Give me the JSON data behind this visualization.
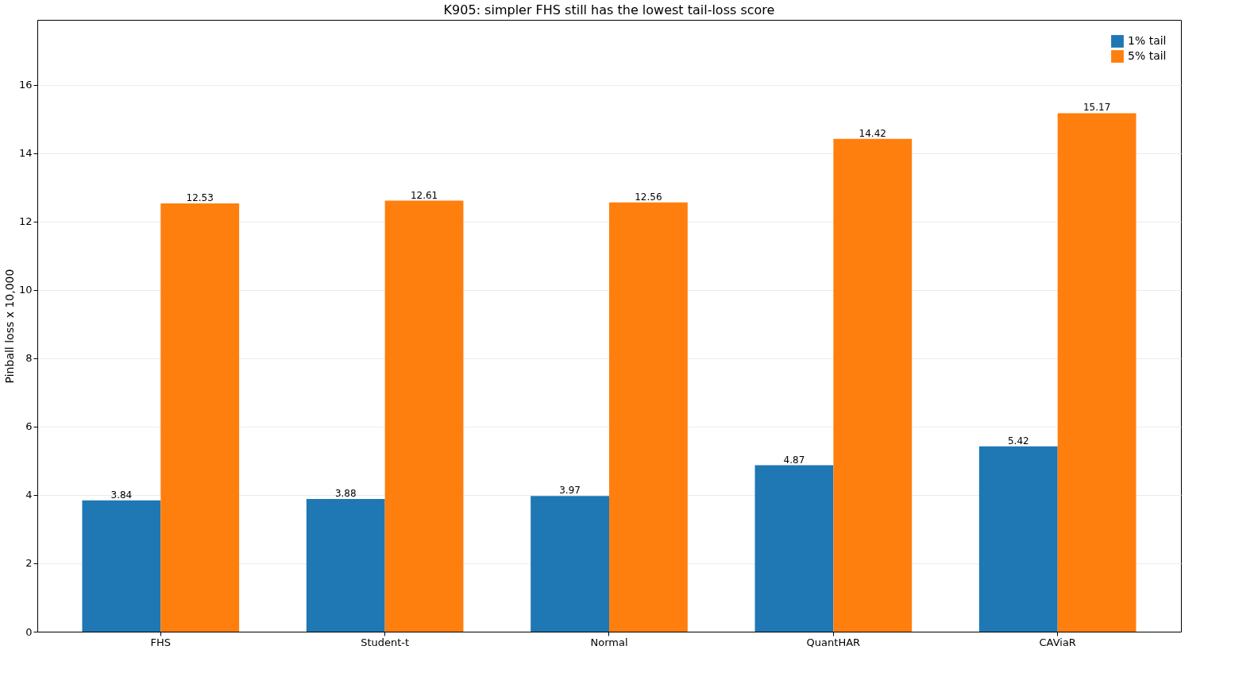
{
  "chart_data": {
    "type": "bar",
    "title": "K905: simpler FHS still has the lowest tail-loss score",
    "ylabel": "Pinball loss x 10,000",
    "categories": [
      "FHS",
      "Student-t",
      "Normal",
      "QuantHAR",
      "CAViaR"
    ],
    "series": [
      {
        "name": "1% tail",
        "color": "#1f77b4",
        "values": [
          3.84,
          3.88,
          3.97,
          4.87,
          5.42
        ]
      },
      {
        "name": "5% tail",
        "color": "#ff7f0e",
        "values": [
          12.53,
          12.61,
          12.56,
          14.42,
          15.17
        ]
      }
    ],
    "ylim": [
      0,
      17.9
    ],
    "yticks": [
      0,
      2,
      4,
      6,
      8,
      10,
      12,
      14,
      16
    ],
    "grid": "y",
    "legend": "top right",
    "data_labels": true
  }
}
